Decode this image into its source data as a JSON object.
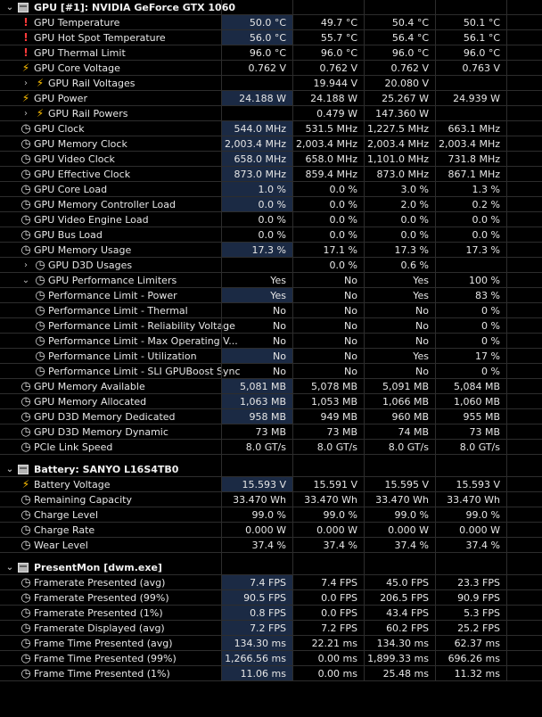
{
  "sections": [
    {
      "title": "GPU [#1]: NVIDIA GeForce GTX 1060",
      "rows": [
        {
          "label": "GPU Temperature",
          "icon": "!",
          "icon_name": "warning-icon",
          "vals": [
            "50.0 °C",
            "49.7 °C",
            "50.4 °C",
            "50.1 °C"
          ],
          "hl": true
        },
        {
          "label": "GPU Hot Spot Temperature",
          "icon": "!",
          "icon_name": "warning-icon",
          "vals": [
            "56.0 °C",
            "55.7 °C",
            "56.4 °C",
            "56.1 °C"
          ],
          "hl": true
        },
        {
          "label": "GPU Thermal Limit",
          "icon": "!",
          "icon_name": "warning-icon",
          "vals": [
            "96.0 °C",
            "96.0 °C",
            "96.0 °C",
            "96.0 °C"
          ]
        },
        {
          "label": "GPU Core Voltage",
          "icon": "volt",
          "icon_name": "lightning-icon",
          "vals": [
            "0.762 V",
            "0.762 V",
            "0.762 V",
            "0.763 V"
          ]
        },
        {
          "label": "GPU Rail Voltages",
          "icon": "volt",
          "icon_name": "lightning-icon",
          "expand": "›",
          "indent": true,
          "vals": [
            "",
            "19.944 V",
            "20.080 V",
            ""
          ]
        },
        {
          "label": "GPU Power",
          "icon": "volt",
          "icon_name": "lightning-icon",
          "vals": [
            "24.188 W",
            "24.188 W",
            "25.267 W",
            "24.939 W"
          ],
          "hl": true
        },
        {
          "label": "GPU Rail Powers",
          "icon": "volt",
          "icon_name": "lightning-icon",
          "expand": "›",
          "indent": true,
          "vals": [
            "",
            "0.479 W",
            "147.360 W",
            ""
          ]
        },
        {
          "label": "GPU Clock",
          "icon": "clock",
          "icon_name": "gauge-icon",
          "vals": [
            "544.0 MHz",
            "531.5 MHz",
            "1,227.5 MHz",
            "663.1 MHz"
          ],
          "hl": true
        },
        {
          "label": "GPU Memory Clock",
          "icon": "clock",
          "icon_name": "gauge-icon",
          "vals": [
            "2,003.4 MHz",
            "2,003.4 MHz",
            "2,003.4 MHz",
            "2,003.4 MHz"
          ],
          "hl": true
        },
        {
          "label": "GPU Video Clock",
          "icon": "clock",
          "icon_name": "gauge-icon",
          "vals": [
            "658.0 MHz",
            "658.0 MHz",
            "1,101.0 MHz",
            "731.8 MHz"
          ],
          "hl": true
        },
        {
          "label": "GPU Effective Clock",
          "icon": "clock",
          "icon_name": "gauge-icon",
          "vals": [
            "873.0 MHz",
            "859.4 MHz",
            "873.0 MHz",
            "867.1 MHz"
          ],
          "hl": true
        },
        {
          "label": "GPU Core Load",
          "icon": "clock",
          "icon_name": "gauge-icon",
          "vals": [
            "1.0 %",
            "0.0 %",
            "3.0 %",
            "1.3 %"
          ],
          "hl": true
        },
        {
          "label": "GPU Memory Controller Load",
          "icon": "clock",
          "icon_name": "gauge-icon",
          "vals": [
            "0.0 %",
            "0.0 %",
            "2.0 %",
            "0.2 %"
          ],
          "hl": true
        },
        {
          "label": "GPU Video Engine Load",
          "icon": "clock",
          "icon_name": "gauge-icon",
          "vals": [
            "0.0 %",
            "0.0 %",
            "0.0 %",
            "0.0 %"
          ]
        },
        {
          "label": "GPU Bus Load",
          "icon": "clock",
          "icon_name": "gauge-icon",
          "vals": [
            "0.0 %",
            "0.0 %",
            "0.0 %",
            "0.0 %"
          ]
        },
        {
          "label": "GPU Memory Usage",
          "icon": "clock",
          "icon_name": "gauge-icon",
          "vals": [
            "17.3 %",
            "17.1 %",
            "17.3 %",
            "17.3 %"
          ],
          "hl": true
        },
        {
          "label": "GPU D3D Usages",
          "icon": "clock",
          "icon_name": "gauge-icon",
          "expand": "›",
          "indent": true,
          "vals": [
            "",
            "0.0 %",
            "0.6 %",
            ""
          ]
        },
        {
          "label": "GPU Performance Limiters",
          "icon": "clock",
          "icon_name": "gauge-icon",
          "expand": "⌄",
          "indent": true,
          "vals": [
            "Yes",
            "No",
            "Yes",
            "100 %"
          ]
        },
        {
          "label": "Performance Limit - Power",
          "icon": "clock",
          "icon_name": "gauge-icon",
          "indent": true,
          "vals": [
            "Yes",
            "No",
            "Yes",
            "83 %"
          ],
          "hl": true
        },
        {
          "label": "Performance Limit - Thermal",
          "icon": "clock",
          "icon_name": "gauge-icon",
          "indent": true,
          "vals": [
            "No",
            "No",
            "No",
            "0 %"
          ]
        },
        {
          "label": "Performance Limit - Reliability Voltage",
          "icon": "clock",
          "icon_name": "gauge-icon",
          "indent": true,
          "vals": [
            "No",
            "No",
            "No",
            "0 %"
          ]
        },
        {
          "label": "Performance Limit - Max Operating V...",
          "icon": "clock",
          "icon_name": "gauge-icon",
          "indent": true,
          "vals": [
            "No",
            "No",
            "No",
            "0 %"
          ]
        },
        {
          "label": "Performance Limit - Utilization",
          "icon": "clock",
          "icon_name": "gauge-icon",
          "indent": true,
          "vals": [
            "No",
            "No",
            "Yes",
            "17 %"
          ],
          "hl": true
        },
        {
          "label": "Performance Limit - SLI GPUBoost Sync",
          "icon": "clock",
          "icon_name": "gauge-icon",
          "indent": true,
          "vals": [
            "No",
            "No",
            "No",
            "0 %"
          ]
        },
        {
          "label": "GPU Memory Available",
          "icon": "clock",
          "icon_name": "gauge-icon",
          "vals": [
            "5,081 MB",
            "5,078 MB",
            "5,091 MB",
            "5,084 MB"
          ],
          "hl": true
        },
        {
          "label": "GPU Memory Allocated",
          "icon": "clock",
          "icon_name": "gauge-icon",
          "vals": [
            "1,063 MB",
            "1,053 MB",
            "1,066 MB",
            "1,060 MB"
          ],
          "hl": true
        },
        {
          "label": "GPU D3D Memory Dedicated",
          "icon": "clock",
          "icon_name": "gauge-icon",
          "vals": [
            "958 MB",
            "949 MB",
            "960 MB",
            "955 MB"
          ],
          "hl": true
        },
        {
          "label": "GPU D3D Memory Dynamic",
          "icon": "clock",
          "icon_name": "gauge-icon",
          "vals": [
            "73 MB",
            "73 MB",
            "74 MB",
            "73 MB"
          ]
        },
        {
          "label": "PCIe Link Speed",
          "icon": "clock",
          "icon_name": "gauge-icon",
          "vals": [
            "8.0 GT/s",
            "8.0 GT/s",
            "8.0 GT/s",
            "8.0 GT/s"
          ]
        }
      ]
    },
    {
      "title": "Battery: SANYO L16S4TB0",
      "rows": [
        {
          "label": "Battery Voltage",
          "icon": "volt",
          "icon_name": "lightning-icon",
          "vals": [
            "15.593 V",
            "15.591 V",
            "15.595 V",
            "15.593 V"
          ],
          "hl": true
        },
        {
          "label": "Remaining Capacity",
          "icon": "clock",
          "icon_name": "gauge-icon",
          "vals": [
            "33.470 Wh",
            "33.470 Wh",
            "33.470 Wh",
            "33.470 Wh"
          ]
        },
        {
          "label": "Charge Level",
          "icon": "clock",
          "icon_name": "gauge-icon",
          "vals": [
            "99.0 %",
            "99.0 %",
            "99.0 %",
            "99.0 %"
          ]
        },
        {
          "label": "Charge Rate",
          "icon": "clock",
          "icon_name": "gauge-icon",
          "vals": [
            "0.000 W",
            "0.000 W",
            "0.000 W",
            "0.000 W"
          ]
        },
        {
          "label": "Wear Level",
          "icon": "clock",
          "icon_name": "gauge-icon",
          "vals": [
            "37.4 %",
            "37.4 %",
            "37.4 %",
            "37.4 %"
          ]
        }
      ]
    },
    {
      "title": "PresentMon [dwm.exe]",
      "rows": [
        {
          "label": "Framerate Presented (avg)",
          "icon": "clock",
          "icon_name": "gauge-icon",
          "vals": [
            "7.4 FPS",
            "7.4 FPS",
            "45.0 FPS",
            "23.3 FPS"
          ],
          "hl": true
        },
        {
          "label": "Framerate Presented (99%)",
          "icon": "clock",
          "icon_name": "gauge-icon",
          "vals": [
            "90.5 FPS",
            "0.0 FPS",
            "206.5 FPS",
            "90.9 FPS"
          ],
          "hl": true
        },
        {
          "label": "Framerate Presented (1%)",
          "icon": "clock",
          "icon_name": "gauge-icon",
          "vals": [
            "0.8 FPS",
            "0.0 FPS",
            "43.4 FPS",
            "5.3 FPS"
          ],
          "hl": true
        },
        {
          "label": "Framerate Displayed (avg)",
          "icon": "clock",
          "icon_name": "gauge-icon",
          "vals": [
            "7.2 FPS",
            "7.2 FPS",
            "60.2 FPS",
            "25.2 FPS"
          ],
          "hl": true
        },
        {
          "label": "Frame Time Presented (avg)",
          "icon": "clock",
          "icon_name": "gauge-icon",
          "vals": [
            "134.30 ms",
            "22.21 ms",
            "134.30 ms",
            "62.37 ms"
          ],
          "hl": true
        },
        {
          "label": "Frame Time Presented (99%)",
          "icon": "clock",
          "icon_name": "gauge-icon",
          "vals": [
            "1,266.56 ms",
            "0.00 ms",
            "1,899.33 ms",
            "696.26 ms"
          ],
          "hl": true
        },
        {
          "label": "Frame Time Presented (1%)",
          "icon": "clock",
          "icon_name": "gauge-icon",
          "vals": [
            "11.06 ms",
            "0.00 ms",
            "25.48 ms",
            "11.32 ms"
          ],
          "hl": true
        }
      ]
    }
  ]
}
